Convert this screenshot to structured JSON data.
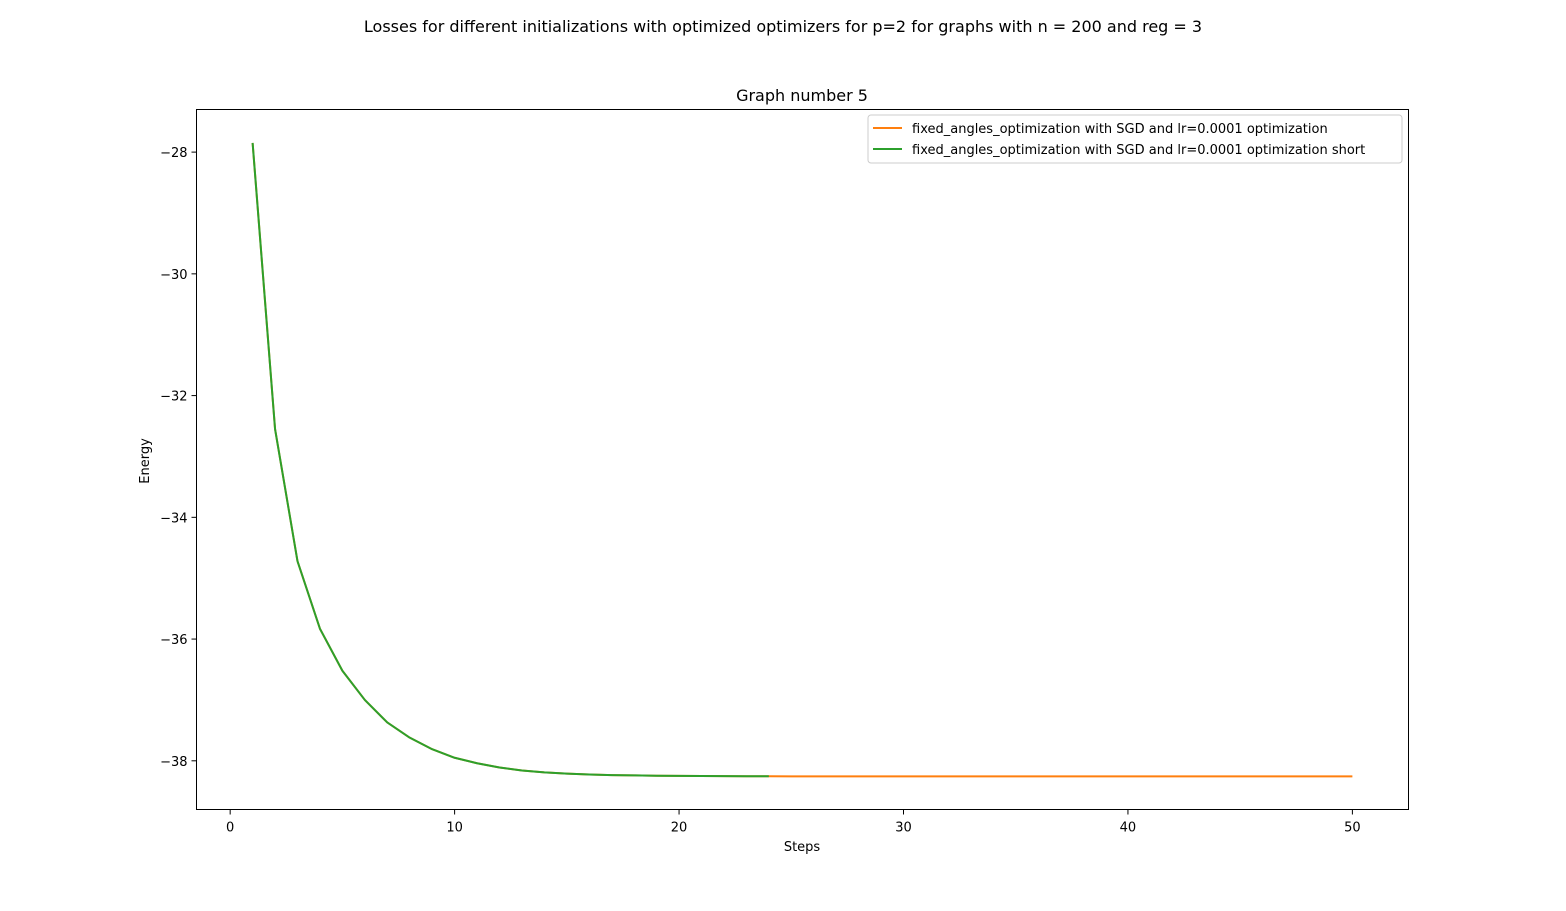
{
  "suptitle": "Losses for different initializations with optimized optimizers for p=2 for graphs with n = 200 and reg = 3",
  "chart_data": {
    "type": "line",
    "title": "Graph number 5",
    "xlabel": "Steps",
    "ylabel": "Energy",
    "xlim": [
      -1.5,
      52.5
    ],
    "ylim": [
      -38.8,
      -27.3
    ],
    "xticks": [
      0,
      10,
      20,
      30,
      40,
      50
    ],
    "yticks": [
      -28,
      -30,
      -32,
      -34,
      -36,
      -38
    ],
    "ytick_labels": [
      "−28",
      "−30",
      "−32",
      "−34",
      "−36",
      "−38"
    ],
    "grid": false,
    "legend_position": "upper right",
    "series": [
      {
        "name": "fixed_angles_optimization with SGD and lr=0.0001 optimization",
        "color": "#ff7f0e",
        "x": [
          1,
          2,
          3,
          4,
          5,
          6,
          7,
          8,
          9,
          10,
          11,
          12,
          13,
          14,
          15,
          16,
          17,
          18,
          19,
          20,
          21,
          22,
          23,
          24,
          25,
          26,
          27,
          28,
          29,
          30,
          31,
          32,
          33,
          34,
          35,
          36,
          37,
          38,
          39,
          40,
          41,
          42,
          43,
          44,
          45,
          46,
          47,
          48,
          49,
          50
        ],
        "y": [
          -27.85,
          -32.55,
          -34.72,
          -35.83,
          -36.52,
          -37.0,
          -37.37,
          -37.62,
          -37.81,
          -37.95,
          -38.04,
          -38.11,
          -38.16,
          -38.19,
          -38.21,
          -38.225,
          -38.235,
          -38.24,
          -38.245,
          -38.248,
          -38.25,
          -38.252,
          -38.253,
          -38.254,
          -38.255,
          -38.255,
          -38.255,
          -38.255,
          -38.255,
          -38.255,
          -38.255,
          -38.255,
          -38.255,
          -38.255,
          -38.255,
          -38.255,
          -38.255,
          -38.255,
          -38.255,
          -38.255,
          -38.255,
          -38.255,
          -38.255,
          -38.255,
          -38.255,
          -38.255,
          -38.255,
          -38.255,
          -38.255,
          -38.255
        ]
      },
      {
        "name": "fixed_angles_optimization with SGD and lr=0.0001 optimization short",
        "color": "#2ca02c",
        "x": [
          1,
          2,
          3,
          4,
          5,
          6,
          7,
          8,
          9,
          10,
          11,
          12,
          13,
          14,
          15,
          16,
          17,
          18,
          19,
          20,
          21,
          22,
          23,
          24
        ],
        "y": [
          -27.85,
          -32.55,
          -34.72,
          -35.83,
          -36.52,
          -37.0,
          -37.37,
          -37.62,
          -37.81,
          -37.95,
          -38.04,
          -38.11,
          -38.16,
          -38.19,
          -38.21,
          -38.225,
          -38.235,
          -38.24,
          -38.245,
          -38.248,
          -38.25,
          -38.252,
          -38.253,
          -38.254
        ]
      }
    ]
  }
}
